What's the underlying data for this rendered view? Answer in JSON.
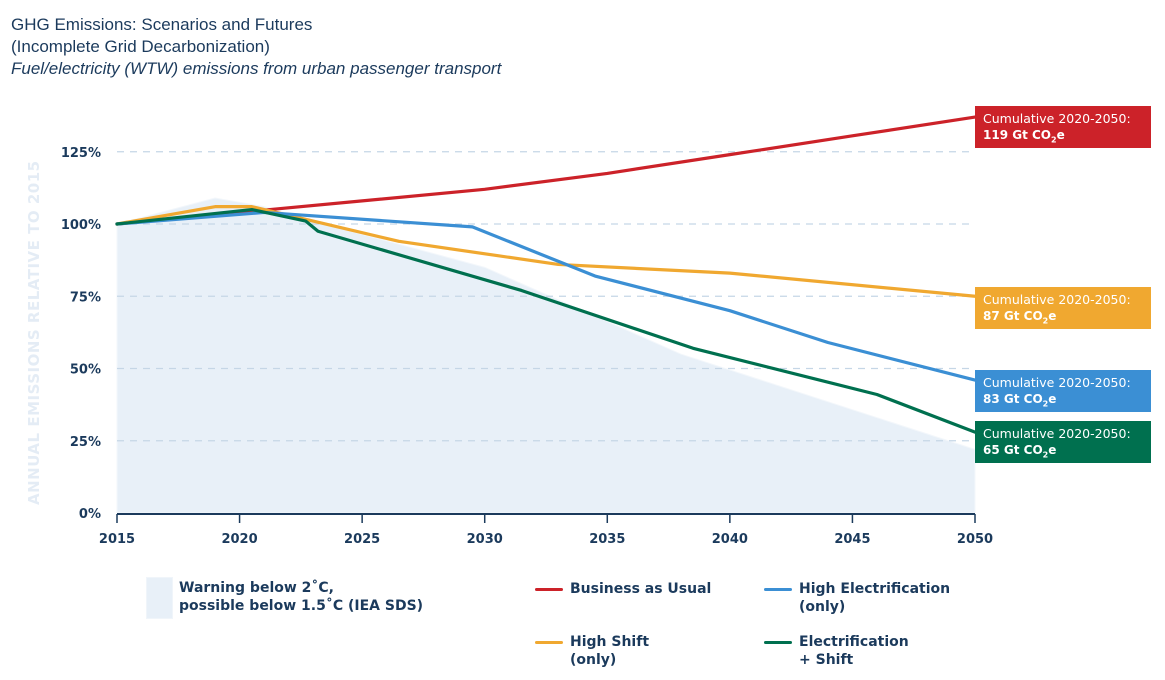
{
  "header": {
    "title_line1": "GHG Emissions: Scenarios and Futures",
    "title_line2": "(Incomplete Grid Decarbonization)",
    "subtitle": "Fuel/electricity (WTW) emissions from urban passenger transport"
  },
  "colors": {
    "bau": "#cc2229",
    "high_shift": "#f0a830",
    "high_electrification": "#3b8fd4",
    "electrification_shift": "#00704f",
    "sds_area": "#e8f0f8",
    "text": "#1b3a5c",
    "grid": "#c5d6e6"
  },
  "callouts": [
    {
      "label": "Cumulative 2020-2050:",
      "value": "119 Gt CO",
      "sub": "2",
      "suffix": "e",
      "series": "Business as Usual"
    },
    {
      "label": "Cumulative 2020-2050:",
      "value": "87 Gt CO",
      "sub": "2",
      "suffix": "e",
      "series": "High Shift (only)"
    },
    {
      "label": "Cumulative 2020-2050:",
      "value": "83 Gt CO",
      "sub": "2",
      "suffix": "e",
      "series": "High Electrification (only)"
    },
    {
      "label": "Cumulative 2020-2050:",
      "value": "65 Gt CO",
      "sub": "2",
      "suffix": "e",
      "series": "Electrification + Shift"
    }
  ],
  "legend": {
    "area_line1": "Warning below 2˚C,",
    "area_line2": "possible below 1.5˚C (IEA SDS)",
    "bau": "Business as Usual",
    "he_line1": "High Electrification",
    "he_line2": "(only)",
    "hs_line1": "High Shift",
    "hs_line2": "(only)",
    "es_line1": "Electrification",
    "es_line2": "+ Shift"
  },
  "chart_data": {
    "type": "line",
    "title": "GHG Emissions: Scenarios and Futures (Incomplete Grid Decarbonization)",
    "subtitle": "Fuel/electricity (WTW) emissions from urban passenger transport",
    "xlabel": "",
    "ylabel": "ANNUAL EMISSIONS RELATIVE TO 2015",
    "xlim": [
      2015,
      2050
    ],
    "ylim": [
      0,
      125
    ],
    "x_ticks": [
      "2015",
      "2020",
      "2025",
      "2030",
      "2035",
      "2040",
      "2045",
      "2050"
    ],
    "y_ticks": [
      "0%",
      "25%",
      "50%",
      "75%",
      "100%",
      "125%"
    ],
    "y_tick_values": [
      0,
      25,
      50,
      75,
      100,
      125
    ],
    "grid": "horizontal dashed",
    "legend_position": "bottom",
    "area": {
      "name": "Warning below 2˚C, possible below 1.5˚C (IEA SDS)",
      "x": [
        2015,
        2019,
        2021,
        2023,
        2030,
        2038,
        2050
      ],
      "y": [
        100,
        109,
        106,
        101,
        85,
        55,
        22
      ]
    },
    "series": [
      {
        "name": "Business as Usual",
        "key": "bau",
        "x": [
          2015,
          2020,
          2025,
          2030,
          2035,
          2040,
          2045,
          2050
        ],
        "y": [
          100,
          104,
          108,
          112,
          117.5,
          124,
          130.5,
          137
        ]
      },
      {
        "name": "High Shift (only)",
        "key": "high_shift",
        "x": [
          2015,
          2019,
          2020.5,
          2023,
          2026.5,
          2033,
          2040,
          2050
        ],
        "y": [
          100,
          106,
          106,
          101,
          94,
          86,
          83,
          75
        ]
      },
      {
        "name": "High Electrification (only)",
        "key": "high_electrification",
        "x": [
          2015,
          2021,
          2029.5,
          2034.5,
          2040,
          2044,
          2050
        ],
        "y": [
          100,
          104,
          99,
          82,
          70,
          59,
          46
        ]
      },
      {
        "name": "Electrification + Shift",
        "key": "electrification_shift",
        "x": [
          2015,
          2020.5,
          2022.7,
          2023.2,
          2031.5,
          2038.5,
          2046,
          2050
        ],
        "y": [
          100,
          105,
          101,
          97.5,
          77,
          57,
          41,
          28
        ]
      }
    ],
    "annotations": [
      "Cumulative 2020-2050: 119 Gt CO2e",
      "Cumulative 2020-2050: 87 Gt CO2e",
      "Cumulative 2020-2050: 83 Gt CO2e",
      "Cumulative 2020-2050: 65 Gt CO2e"
    ]
  }
}
